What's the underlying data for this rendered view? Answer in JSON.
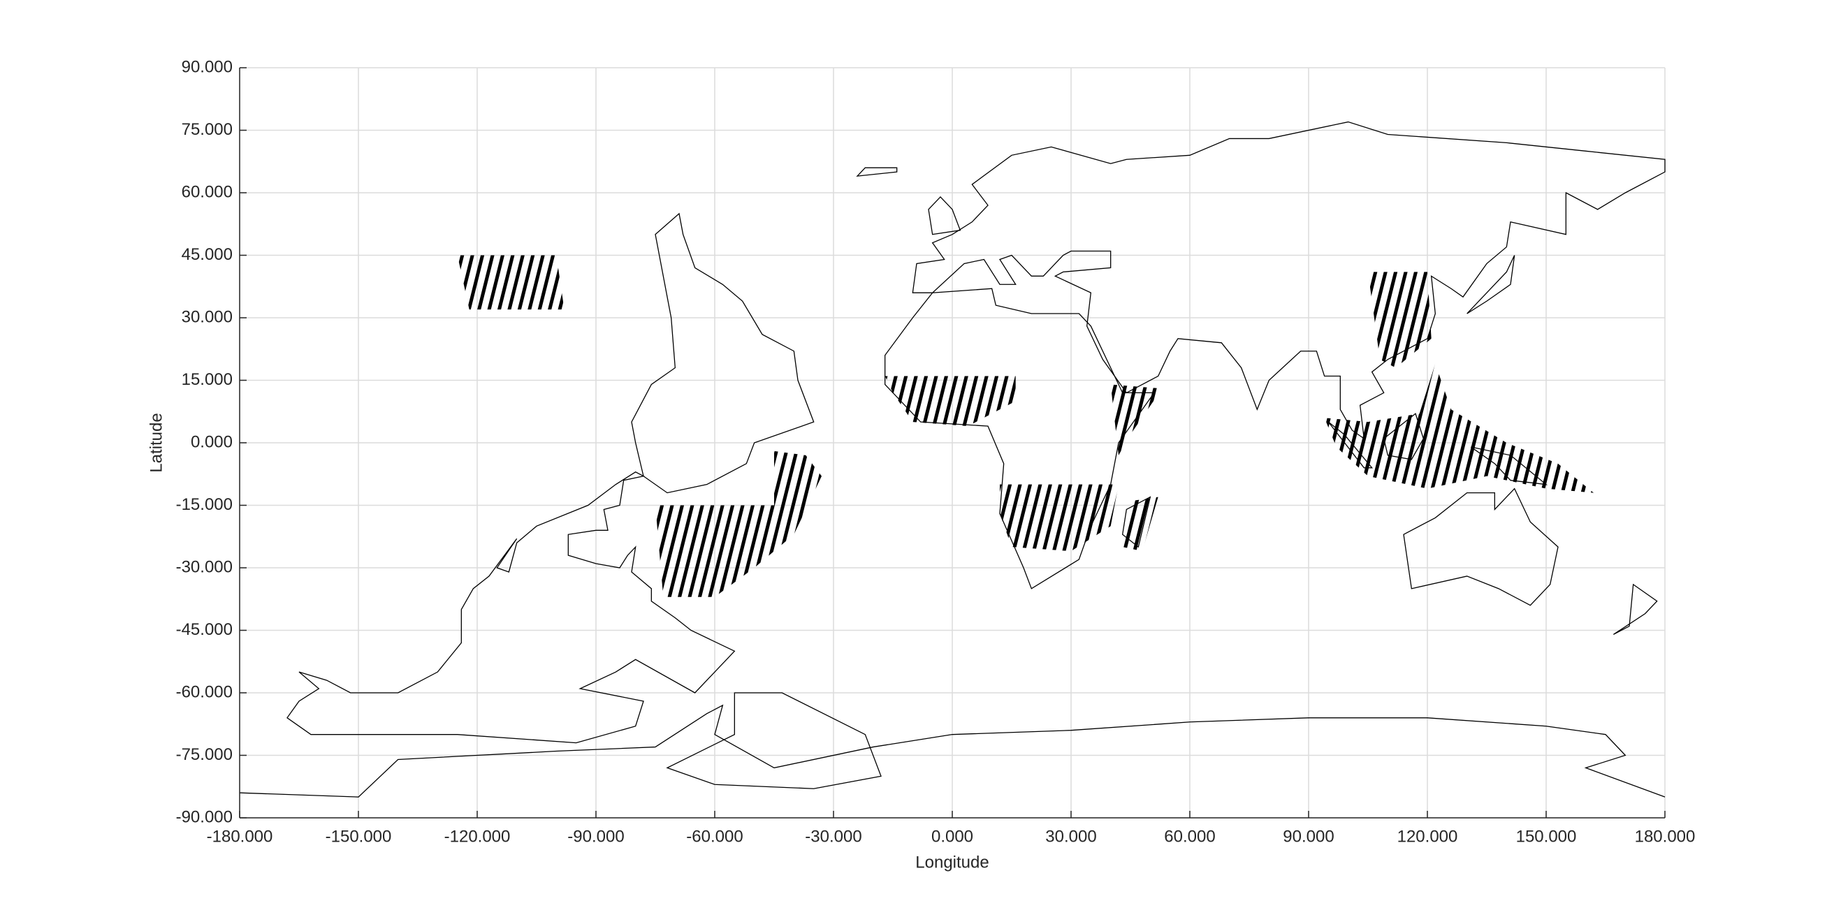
{
  "chart_data": {
    "type": "hatched-regions",
    "x_label": "Longitude",
    "y_label": "Latitude",
    "xlim": [
      -180,
      180
    ],
    "ylim": [
      -90,
      90
    ],
    "xticks": [
      {
        "value": -180,
        "label": "-180.000"
      },
      {
        "value": -150,
        "label": "-150.000"
      },
      {
        "value": -120,
        "label": "-120.000"
      },
      {
        "value": -90,
        "label": "-90.000"
      },
      {
        "value": -60,
        "label": "-60.000"
      },
      {
        "value": -30,
        "label": "-30.000"
      },
      {
        "value": 0,
        "label": "0.000"
      },
      {
        "value": 30,
        "label": "30.000"
      },
      {
        "value": 60,
        "label": "60.000"
      },
      {
        "value": 90,
        "label": "90.000"
      },
      {
        "value": 120,
        "label": "120.000"
      },
      {
        "value": 150,
        "label": "150.000"
      },
      {
        "value": 180,
        "label": "180.000"
      }
    ],
    "yticks": [
      {
        "value": 90,
        "label": "90.000"
      },
      {
        "value": 75,
        "label": "75.000"
      },
      {
        "value": 60,
        "label": "60.000"
      },
      {
        "value": 45,
        "label": "45.000"
      },
      {
        "value": 30,
        "label": "30.000"
      },
      {
        "value": 15,
        "label": "15.000"
      },
      {
        "value": 0,
        "label": "0.000"
      },
      {
        "value": -15,
        "label": "-15.000"
      },
      {
        "value": -30,
        "label": "-30.000"
      },
      {
        "value": -45,
        "label": "-45.000"
      },
      {
        "value": -60,
        "label": "-60.000"
      },
      {
        "value": -75,
        "label": "-75.000"
      },
      {
        "value": -90,
        "label": "-90.000"
      }
    ],
    "grid": true,
    "color": "#5a50c4",
    "regions": [
      {
        "lon": [
          -125,
          -100,
          -98,
          -122
        ],
        "lat": [
          45,
          45,
          32,
          32
        ]
      },
      {
        "lon": [
          -75,
          -45,
          -45,
          -37,
          -33,
          -40,
          -50,
          -60,
          -73
        ],
        "lat": [
          -15,
          -15,
          -2,
          -3,
          -8,
          -22,
          -30,
          -37,
          -37
        ]
      },
      {
        "lon": [
          -17,
          16,
          16,
          4,
          -10,
          -15
        ],
        "lat": [
          16,
          16,
          10,
          4,
          5,
          12
        ]
      },
      {
        "lon": [
          40,
          53,
          45,
          42
        ],
        "lat": [
          14,
          13,
          2,
          -3
        ]
      },
      {
        "lon": [
          12,
          42,
          40,
          30,
          15,
          12
        ],
        "lat": [
          -10,
          -10,
          -20,
          -26,
          -25,
          -17
        ]
      },
      {
        "lon": [
          45,
          52,
          48,
          43
        ],
        "lat": [
          -14,
          -13,
          -26,
          -25
        ]
      },
      {
        "lon": [
          105,
          120,
          121,
          112,
          108
        ],
        "lat": [
          41,
          41,
          25,
          18,
          20
        ]
      },
      {
        "lon": [
          94,
          105,
          118,
          122,
          126,
          140,
          153,
          162,
          150,
          135,
          120,
          105,
          97
        ],
        "lat": [
          6,
          5,
          7,
          19,
          8,
          0,
          -5,
          -12,
          -11,
          -8,
          -11,
          -8,
          -1
        ]
      }
    ]
  }
}
